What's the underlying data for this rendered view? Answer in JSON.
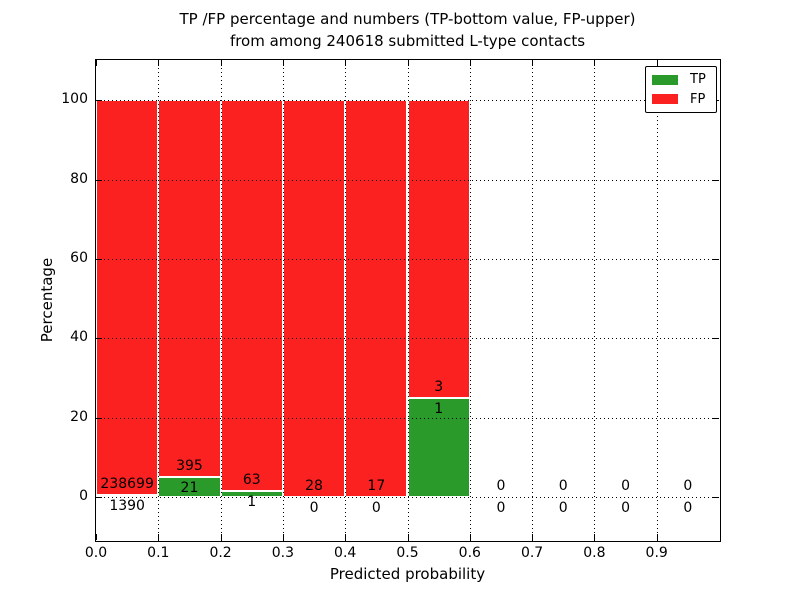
{
  "chart_data": {
    "type": "bar",
    "stacked": true,
    "title_line1": "TP /FP percentage and numbers (TP-bottom value, FP-upper)",
    "title_line2": "from among 240618 submitted L-type contacts",
    "xlabel": "Predicted probability",
    "ylabel": "Percentage",
    "xlim": [
      0.0,
      1.0
    ],
    "ylim": [
      -10.8,
      110.1
    ],
    "grid": "dotted",
    "x_ticks": [
      {
        "value": 0.0,
        "label": "0.0"
      },
      {
        "value": 0.1,
        "label": "0.1"
      },
      {
        "value": 0.2,
        "label": "0.2"
      },
      {
        "value": 0.3,
        "label": "0.3"
      },
      {
        "value": 0.4,
        "label": "0.4"
      },
      {
        "value": 0.5,
        "label": "0.5"
      },
      {
        "value": 0.6,
        "label": "0.6"
      },
      {
        "value": 0.7,
        "label": "0.7"
      },
      {
        "value": 0.8,
        "label": "0.8"
      },
      {
        "value": 0.9,
        "label": "0.9"
      }
    ],
    "y_ticks": [
      {
        "value": 0,
        "label": "0"
      },
      {
        "value": 20,
        "label": "20"
      },
      {
        "value": 40,
        "label": "40"
      },
      {
        "value": 60,
        "label": "60"
      },
      {
        "value": 80,
        "label": "80"
      },
      {
        "value": 100,
        "label": "100"
      }
    ],
    "bin_width": 0.1,
    "bins": [
      {
        "x0": 0.0,
        "x1": 0.1,
        "tp": 1390,
        "fp": 238699
      },
      {
        "x0": 0.1,
        "x1": 0.2,
        "tp": 21,
        "fp": 395
      },
      {
        "x0": 0.2,
        "x1": 0.3,
        "tp": 1,
        "fp": 63
      },
      {
        "x0": 0.3,
        "x1": 0.4,
        "tp": 0,
        "fp": 28
      },
      {
        "x0": 0.4,
        "x1": 0.5,
        "tp": 0,
        "fp": 17
      },
      {
        "x0": 0.5,
        "x1": 0.6,
        "tp": 1,
        "fp": 3
      },
      {
        "x0": 0.6,
        "x1": 0.7,
        "tp": 0,
        "fp": 0
      },
      {
        "x0": 0.7,
        "x1": 0.8,
        "tp": 0,
        "fp": 0
      },
      {
        "x0": 0.8,
        "x1": 0.9,
        "tp": 0,
        "fp": 0
      },
      {
        "x0": 0.9,
        "x1": 1.0,
        "tp": 0,
        "fp": 0
      }
    ],
    "series": [
      {
        "name": "TP",
        "color": "#2a9a2a"
      },
      {
        "name": "FP",
        "color": "#fb2121"
      }
    ],
    "legend": {
      "position": "upper right",
      "entries": [
        {
          "label": "TP",
          "color": "#2a9a2a"
        },
        {
          "label": "FP",
          "color": "#fb2121"
        }
      ]
    },
    "colors": {
      "tp": "#2a9a2a",
      "fp": "#fb2121",
      "bar_edge": "#ffffff",
      "grid": "#000000",
      "background": "#ffffff"
    }
  }
}
